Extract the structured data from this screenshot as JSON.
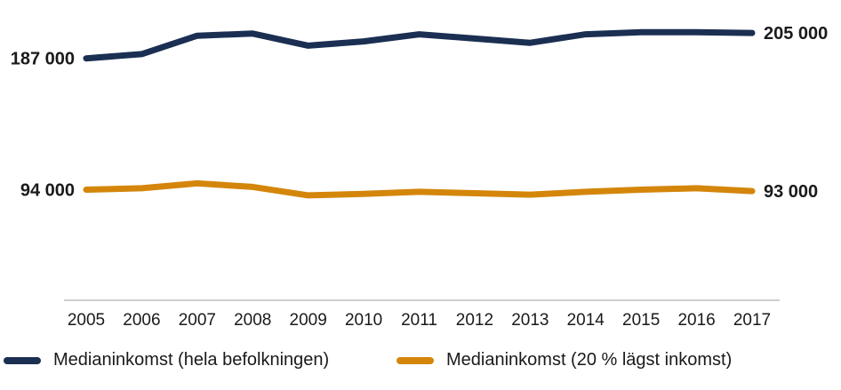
{
  "chart_data": {
    "type": "line",
    "x": [
      "2005",
      "2006",
      "2007",
      "2008",
      "2009",
      "2010",
      "2011",
      "2012",
      "2013",
      "2014",
      "2015",
      "2016",
      "2017"
    ],
    "series": [
      {
        "name": "Medianinkomst (hela befolkningen)",
        "color": "#1b2f52",
        "values": [
          187000,
          190000,
          203000,
          204500,
          196000,
          199000,
          204000,
          201000,
          198000,
          204000,
          205500,
          205500,
          205000
        ],
        "start_label": "187 000",
        "end_label": "205 000"
      },
      {
        "name": "Medianinkomst (20 % lägst inkomst)",
        "color": "#d4860b",
        "values": [
          94000,
          95000,
          98500,
          96000,
          90000,
          91000,
          92500,
          91500,
          90500,
          92500,
          94000,
          95000,
          93000
        ],
        "start_label": "94 000",
        "end_label": "93 000"
      }
    ],
    "ylim": [
      0,
      220000
    ],
    "grid": false,
    "legend_placement": "bottom",
    "title": "",
    "xlabel": "",
    "ylabel": ""
  }
}
